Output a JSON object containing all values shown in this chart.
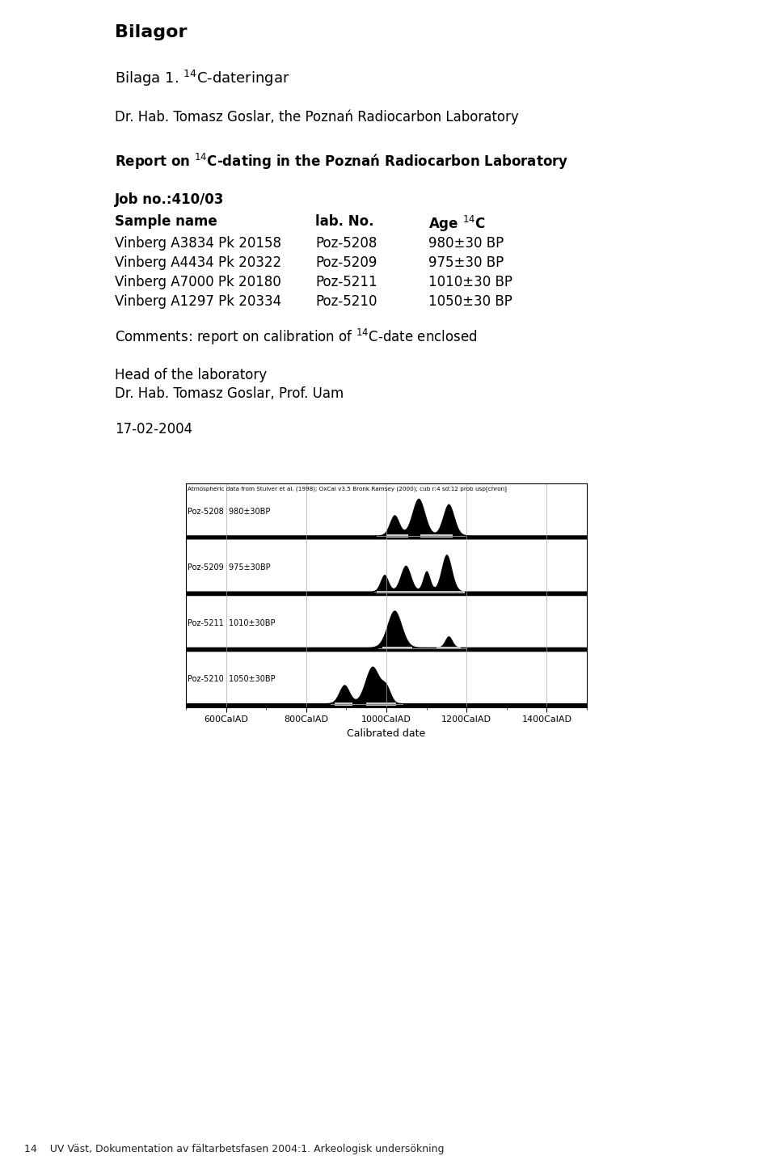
{
  "title": "Bilagor",
  "bilaga_heading": "Bilaga 1. $^{14}$C-dateringar",
  "author_line": "Dr. Hab. Tomasz Goslar, the Poznań Radiocarbon Laboratory",
  "report_line": "Report on $^{14}$C-dating in the Poznań Radiocarbon Laboratory",
  "job_no": "Job no.:410/03",
  "col_headers": [
    "Sample name",
    "lab. No.",
    "Age $^{14}$C"
  ],
  "samples": [
    [
      "Vinberg A3834 Pk 20158",
      "Poz-5208",
      "980±30 BP"
    ],
    [
      "Vinberg A4434 Pk 20322",
      "Poz-5209",
      "975±30 BP"
    ],
    [
      "Vinberg A7000 Pk 20180",
      "Poz-5211",
      "1010±30 BP"
    ],
    [
      "Vinberg A1297 Pk 20334",
      "Poz-5210",
      "1050±30 BP"
    ]
  ],
  "comments": "Comments: report on calibration of $^{14}$C-date enclosed",
  "head_lab": "Head of the laboratory",
  "signature": "Dr. Hab. Tomasz Goslar, Prof. Uam",
  "date": "17-02-2004",
  "chart_note": "Atmospheric data from Stuiver et al. (1998); OxCal v3.5 Bronk Ramsey (2000); cub r:4 sd:12 prob usp[chron]",
  "xlabel": "Calibrated date",
  "xticks": [
    600,
    800,
    1000,
    1200,
    1400
  ],
  "xtick_labels": [
    "600CalAD",
    "800CalAD",
    "1000CalAD",
    "1200CalAD",
    "1400CalAD"
  ],
  "row_labels": [
    "Poz-5208  980±30BP",
    "Poz-5209  975±30BP",
    "Poz-5211  1010±30BP",
    "Poz-5210  1050±30BP"
  ],
  "footer": "14    UV Väst, Dokumentation av fältarbetsfasen 2004:1. Arkeologisk undersökning",
  "bg_color": "#ffffff",
  "text_color": "#000000"
}
